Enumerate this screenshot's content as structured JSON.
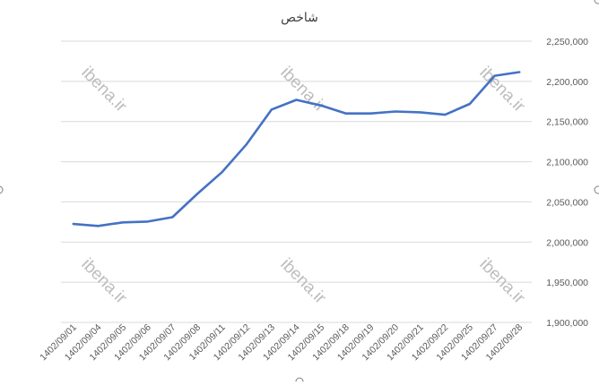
{
  "chart_data": {
    "type": "line",
    "title": "شاخص",
    "xlabel": "",
    "ylabel": "",
    "categories": [
      "1402/09/01",
      "1402/09/04",
      "1402/09/05",
      "1402/09/06",
      "1402/09/07",
      "1402/09/08",
      "1402/09/11",
      "1402/09/12",
      "1402/09/13",
      "1402/09/14",
      "1402/09/15",
      "1402/09/18",
      "1402/09/19",
      "1402/09/20",
      "1402/09/21",
      "1402/09/22",
      "1402/09/25",
      "1402/09/27",
      "1402/09/28"
    ],
    "series": [
      {
        "values": [
          2022500,
          2020000,
          2024500,
          2025500,
          2031000,
          2060000,
          2087000,
          2122000,
          2165000,
          2177000,
          2170000,
          2160000,
          2160000,
          2162500,
          2161500,
          2158500,
          2172000,
          2207000,
          2211500
        ],
        "color": "#4472c4"
      }
    ],
    "ylim": [
      1900000,
      2250000
    ],
    "yticks": [
      "1,900,000",
      "1,950,000",
      "2,000,000",
      "2,050,000",
      "2,100,000",
      "2,150,000",
      "2,200,000",
      "2,250,000"
    ],
    "grid": true,
    "legend": "none"
  },
  "watermark": "ibena.ir"
}
